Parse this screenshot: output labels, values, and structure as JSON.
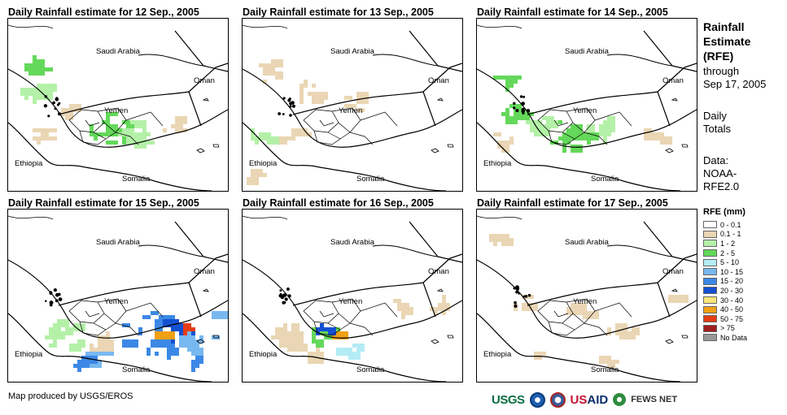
{
  "panels": [
    {
      "title": "Daily Rainfall estimate for 12 Sep., 2005",
      "rain": "light-west"
    },
    {
      "title": "Daily Rainfall estimate for 13 Sep., 2005",
      "rain": "scattered"
    },
    {
      "title": "Daily Rainfall estimate for 14 Sep., 2005",
      "rain": "moderate-west"
    },
    {
      "title": "Daily Rainfall estimate for 15 Sep., 2005",
      "rain": "heavy-south"
    },
    {
      "title": "Daily Rainfall estimate for 16 Sep., 2005",
      "rain": "moderate-south"
    },
    {
      "title": "Daily Rainfall estimate for 17 Sep., 2005",
      "rain": "scattered-light"
    }
  ],
  "map_labels": {
    "saudi": "Saudi Arabia",
    "oman": "Oman",
    "yemen": "Yemen",
    "ethiopia": "Ethiopia",
    "somalia": "Somalia"
  },
  "sidebar": {
    "title_lines": [
      "Rainfall",
      "Estimate",
      "(RFE)"
    ],
    "through": "through",
    "date": "Sep 17, 2005",
    "daily": "Daily",
    "totals": "Totals",
    "data_label": "Data:",
    "source1": "NOAA-",
    "source2": "RFE2.0"
  },
  "legend": {
    "title": "RFE (mm)",
    "items": [
      {
        "label": "0 - 0.1",
        "color": "#ffffff"
      },
      {
        "label": "0.1 - 1",
        "color": "#ead6b4"
      },
      {
        "label": "1 - 2",
        "color": "#b4f0a8"
      },
      {
        "label": "2 - 5",
        "color": "#64d85a"
      },
      {
        "label": "5 - 10",
        "color": "#b4ecf5"
      },
      {
        "label": "10 - 15",
        "color": "#78b8f0"
      },
      {
        "label": "15 - 20",
        "color": "#3c88e6"
      },
      {
        "label": "20 - 30",
        "color": "#1450d2"
      },
      {
        "label": "30 - 40",
        "color": "#fae678"
      },
      {
        "label": "40 - 50",
        "color": "#f0a014"
      },
      {
        "label": "50 - 75",
        "color": "#e63c14"
      },
      {
        "label": "> 75",
        "color": "#a01e1e"
      },
      {
        "label": "No Data",
        "color": "#999999"
      }
    ]
  },
  "footer": {
    "credit": "Map produced by USGS/EROS"
  },
  "logos": {
    "usgs": "USGS",
    "usaid_a": "US",
    "usaid_b": "AID",
    "fews": "FEWS NET"
  }
}
